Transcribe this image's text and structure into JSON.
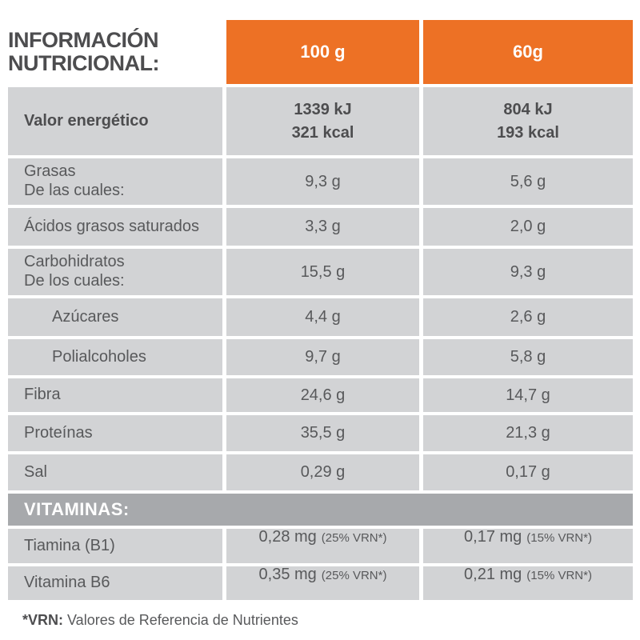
{
  "colors": {
    "orange": "#ED7125",
    "row_gray": "#D2D3D5",
    "band_gray": "#A7A9AC",
    "title_text": "#4D4D4F",
    "body_text": "#58595B",
    "header_text": "#FFFFFF"
  },
  "header": {
    "title_line1": "INFORMACIÓN",
    "title_line2": "NUTRICIONAL:",
    "col_100g": "100 g",
    "col_60g": "60g"
  },
  "rows": [
    {
      "label": "Valor energético",
      "col1_line1": "1339 kJ",
      "col1_line2": "321 kcal",
      "col2_line1": "804 kJ",
      "col2_line2": "193 kcal"
    },
    {
      "label": "Grasas",
      "sublabel": "De las cuales:",
      "col1": "9,3 g",
      "col2": "5,6 g"
    },
    {
      "label": "Ácidos grasos saturados",
      "col1": "3,3 g",
      "col2": "2,0 g"
    },
    {
      "label": "Carbohidratos",
      "sublabel": "De los cuales:",
      "col1": "15,5 g",
      "col2": "9,3 g"
    },
    {
      "label": "Azúcares",
      "col1": "4,4 g",
      "col2": "2,6 g"
    },
    {
      "label": "Polialcoholes",
      "col1": "9,7 g",
      "col2": "5,8 g"
    },
    {
      "label": "Fibra",
      "col1": "24,6 g",
      "col2": "14,7 g"
    },
    {
      "label": "Proteínas",
      "col1": "35,5 g",
      "col2": "21,3 g"
    },
    {
      "label": "Sal",
      "col1": "0,29 g",
      "col2": "0,17 g"
    }
  ],
  "vitamins": {
    "heading": "VITAMINAS:",
    "rows": [
      {
        "label": "Tiamina (B1)",
        "col1": "0,28 mg",
        "col1_note": "(25% VRN*)",
        "col2": "0,17 mg",
        "col2_note": "(15% VRN*)"
      },
      {
        "label": "Vitamina B6",
        "col1": "0,35 mg",
        "col1_note": "(25% VRN*)",
        "col2": "0,21 mg",
        "col2_note": "(15% VRN*)"
      }
    ]
  },
  "footnote": {
    "prefix": "*VRN:",
    "text": "Valores de Referencia de Nutrientes"
  }
}
